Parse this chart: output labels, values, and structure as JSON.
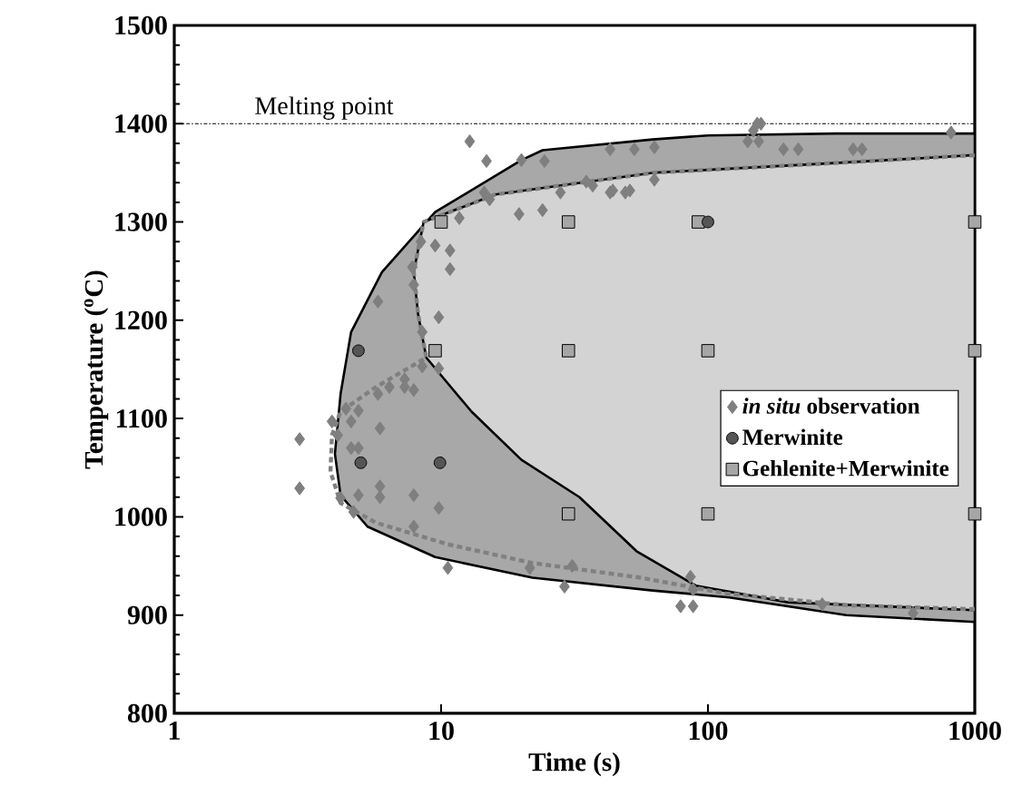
{
  "chart_data": {
    "type": "scatter",
    "xlabel": "Time (s)",
    "ylabel": "Temperature ($^{o}$C)",
    "log": "x",
    "xlim": [
      1,
      1000
    ],
    "xticks": [
      1,
      10,
      100,
      1000
    ],
    "ylim": [
      800,
      1500
    ],
    "yticks": [
      800,
      900,
      1000,
      1100,
      1200,
      1300,
      1400,
      1500
    ],
    "grid": false,
    "legend": "right",
    "ref_lines": [
      {
        "axis": "y",
        "value": 1400,
        "label": "Melting point",
        "line_style": "dotted",
        "color": "#000000"
      }
    ],
    "series": [
      {
        "type": "area",
        "color": "#a8a8a8",
        "x": [
          1000,
          300,
          100,
          62,
          24,
          20,
          9.5,
          6,
          4.6,
          4.2,
          4.0,
          4.2,
          5.3,
          9.5,
          22,
          62,
          120,
          330,
          1000
        ],
        "values": [
          1390,
          1390,
          1388,
          1384,
          1373,
          1363,
          1310,
          1249,
          1188,
          1125,
          1064,
          1022,
          990,
          959,
          938,
          925,
          918,
          900,
          893
        ]
      },
      {
        "type": "area",
        "color": "#d3d3d3",
        "x": [
          1000,
          300,
          62,
          16,
          8.6,
          7.9,
          8.2,
          8.8,
          13,
          20,
          33,
          54,
          90,
          200,
          1000
        ],
        "values": [
          1368,
          1360,
          1350,
          1328,
          1300,
          1249,
          1206,
          1162,
          1107,
          1058,
          1020,
          965,
          930,
          913,
          905
        ]
      },
      {
        "type": "line",
        "color": "#808080",
        "line_style": "dashed",
        "marker": "none",
        "x": [
          1000,
          334,
          117,
          56,
          22,
          10.6,
          5.7,
          4.2,
          3.85,
          3.9,
          4.2,
          5.7,
          8.8,
          8.2,
          7.9,
          8.6,
          16,
          62,
          300,
          1000
        ],
        "values": [
          906,
          910,
          922,
          938,
          953,
          972,
          994,
          1014,
          1046,
          1083,
          1107,
          1132,
          1162,
          1206,
          1249,
          1300,
          1328,
          1350,
          1360,
          1368
        ]
      },
      {
        "name": "*in situ* observation",
        "color": "#7f7f7f",
        "marker": "diamond",
        "x": [
          12.8,
          14.8,
          20,
          24.4,
          14.5,
          15.2,
          19.6,
          24,
          43,
          53,
          43,
          49,
          28,
          37,
          11.7,
          8.4,
          9.5,
          10.8,
          10.8,
          7.8,
          7.9,
          5.8,
          9.8,
          8.5,
          9.8,
          8.5,
          7.3,
          6.4,
          5.8,
          4.9,
          4.4,
          2.95,
          2.95,
          3.9,
          4.6,
          4.1,
          4.6,
          5.9,
          4.9,
          4.9,
          4.2,
          4.7,
          5.9,
          5.9,
          7.9,
          9.8,
          7.9,
          10.6,
          21.5,
          31,
          29,
          7.3,
          7.9,
          63,
          153,
          158,
          148,
          141,
          155,
          192,
          218,
          350,
          378,
          815,
          44,
          51,
          63,
          35,
          86,
          88,
          79,
          88,
          268,
          587
        ],
        "values": [
          1382,
          1362,
          1363,
          1362,
          1330,
          1323,
          1308,
          1312,
          1374,
          1374,
          1330,
          1330,
          1330,
          1337,
          1304,
          1280,
          1276,
          1271,
          1252,
          1254,
          1236,
          1219,
          1203,
          1188,
          1151,
          1153,
          1140,
          1132,
          1125,
          1108,
          1110,
          1079,
          1029,
          1097,
          1097,
          1083,
          1070,
          1090,
          1070,
          1022,
          1019,
          1005,
          1031,
          1020,
          1022,
          1009,
          990,
          948,
          948,
          950,
          929,
          1132,
          1129,
          1376,
          1400,
          1400,
          1393,
          1382,
          1382,
          1374,
          1374,
          1374,
          1374,
          1391,
          1332,
          1332,
          1343,
          1341,
          939,
          926,
          909,
          909,
          911,
          902
        ]
      },
      {
        "name": "Merwinite",
        "color": "#555555",
        "marker": "circle",
        "x": [
          4.9,
          5,
          9.9,
          100
        ],
        "values": [
          1169,
          1055,
          1055,
          1300
        ]
      },
      {
        "name": "Gehlenite+Merwinite",
        "color": "#a6a6a6",
        "marker": "square",
        "x": [
          10,
          30,
          92,
          1000,
          9.5,
          30,
          100,
          1000,
          30,
          100,
          1000
        ],
        "values": [
          1300,
          1300,
          1300,
          1300,
          1169,
          1169,
          1169,
          1169,
          1003,
          1003,
          1003
        ]
      }
    ]
  }
}
